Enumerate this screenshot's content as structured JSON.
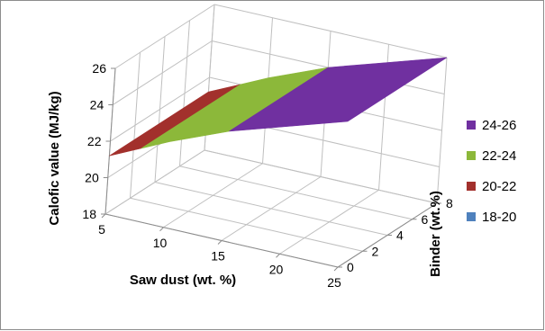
{
  "chart_data": {
    "type": "surface",
    "title": "",
    "zlabel": "Calofic value (MJ/kg)",
    "xlabel": "Saw dust (wt. %)",
    "ylabel": "Binder (wt.%)",
    "x": [
      5,
      10,
      15,
      20,
      25
    ],
    "y": [
      0,
      2,
      4,
      6,
      8
    ],
    "x_ticks": [
      "5",
      "10",
      "15",
      "20",
      "25"
    ],
    "y_ticks": [
      "0",
      "2",
      "4",
      "6",
      "8"
    ],
    "z_ticks": [
      "18",
      "20",
      "22",
      "24",
      "26"
    ],
    "zlim": [
      18,
      26
    ],
    "z_by_x": [
      21.2,
      22.7,
      24.0,
      25.0,
      26.0
    ],
    "legend": [
      {
        "label": "24-26",
        "color": "#7030a0"
      },
      {
        "label": "22-24",
        "color": "#8cb83a"
      },
      {
        "label": "20-22",
        "color": "#a2302c"
      },
      {
        "label": "18-20",
        "color": "#4f81bd"
      }
    ],
    "legend_position": "right",
    "grid": true
  }
}
